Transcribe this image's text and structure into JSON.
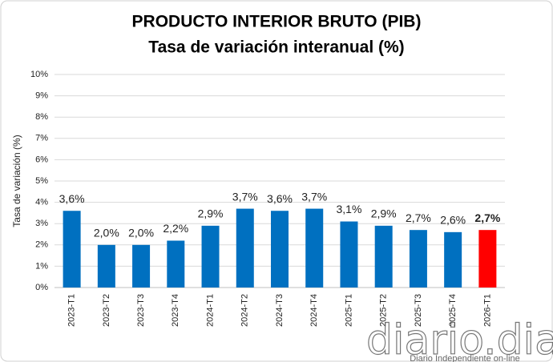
{
  "chart_data": {
    "type": "bar",
    "title": "PRODUCTO INTERIOR BRUTO (PIB)",
    "subtitle": "Tasa de variación interanual (%)",
    "y_label": "Tasa de variación (%)",
    "categories": [
      "2023-T1",
      "2023-T2",
      "2023-T3",
      "2023-T4",
      "2024-T1",
      "2024-T2",
      "2024-T3",
      "2024-T4",
      "2025-T1",
      "2025-T2",
      "2025-T3",
      "2025-T4",
      "2026-T1"
    ],
    "values": [
      3.6,
      2.0,
      2.0,
      2.2,
      2.9,
      3.7,
      3.6,
      3.7,
      3.1,
      2.9,
      2.7,
      2.6,
      2.7
    ],
    "value_labels": [
      "3,6%",
      "2,0%",
      "2,0%",
      "2,2%",
      "2,9%",
      "3,7%",
      "3,6%",
      "3,7%",
      "3,1%",
      "2,9%",
      "2,7%",
      "2,6%",
      "2,7%"
    ],
    "colors": [
      "#0070c0",
      "#0070c0",
      "#0070c0",
      "#0070c0",
      "#0070c0",
      "#0070c0",
      "#0070c0",
      "#0070c0",
      "#0070c0",
      "#0070c0",
      "#0070c0",
      "#0070c0",
      "#ff0000"
    ],
    "ylim": [
      0,
      10
    ],
    "yticks": [
      {
        "value": 0,
        "label": "0%"
      },
      {
        "value": 1,
        "label": "1%"
      },
      {
        "value": 2,
        "label": "2%"
      },
      {
        "value": 3,
        "label": "3%"
      },
      {
        "value": 4,
        "label": "4%"
      },
      {
        "value": 5,
        "label": "5%"
      },
      {
        "value": 6,
        "label": "6%"
      },
      {
        "value": 7,
        "label": "7%"
      },
      {
        "value": 8,
        "label": "8%"
      },
      {
        "value": 9,
        "label": "9%"
      },
      {
        "value": 10,
        "label": "10%"
      }
    ],
    "grid": true
  },
  "watermark": {
    "logo": "diario.dia",
    "tagline": "Diario Independiente on-line"
  }
}
